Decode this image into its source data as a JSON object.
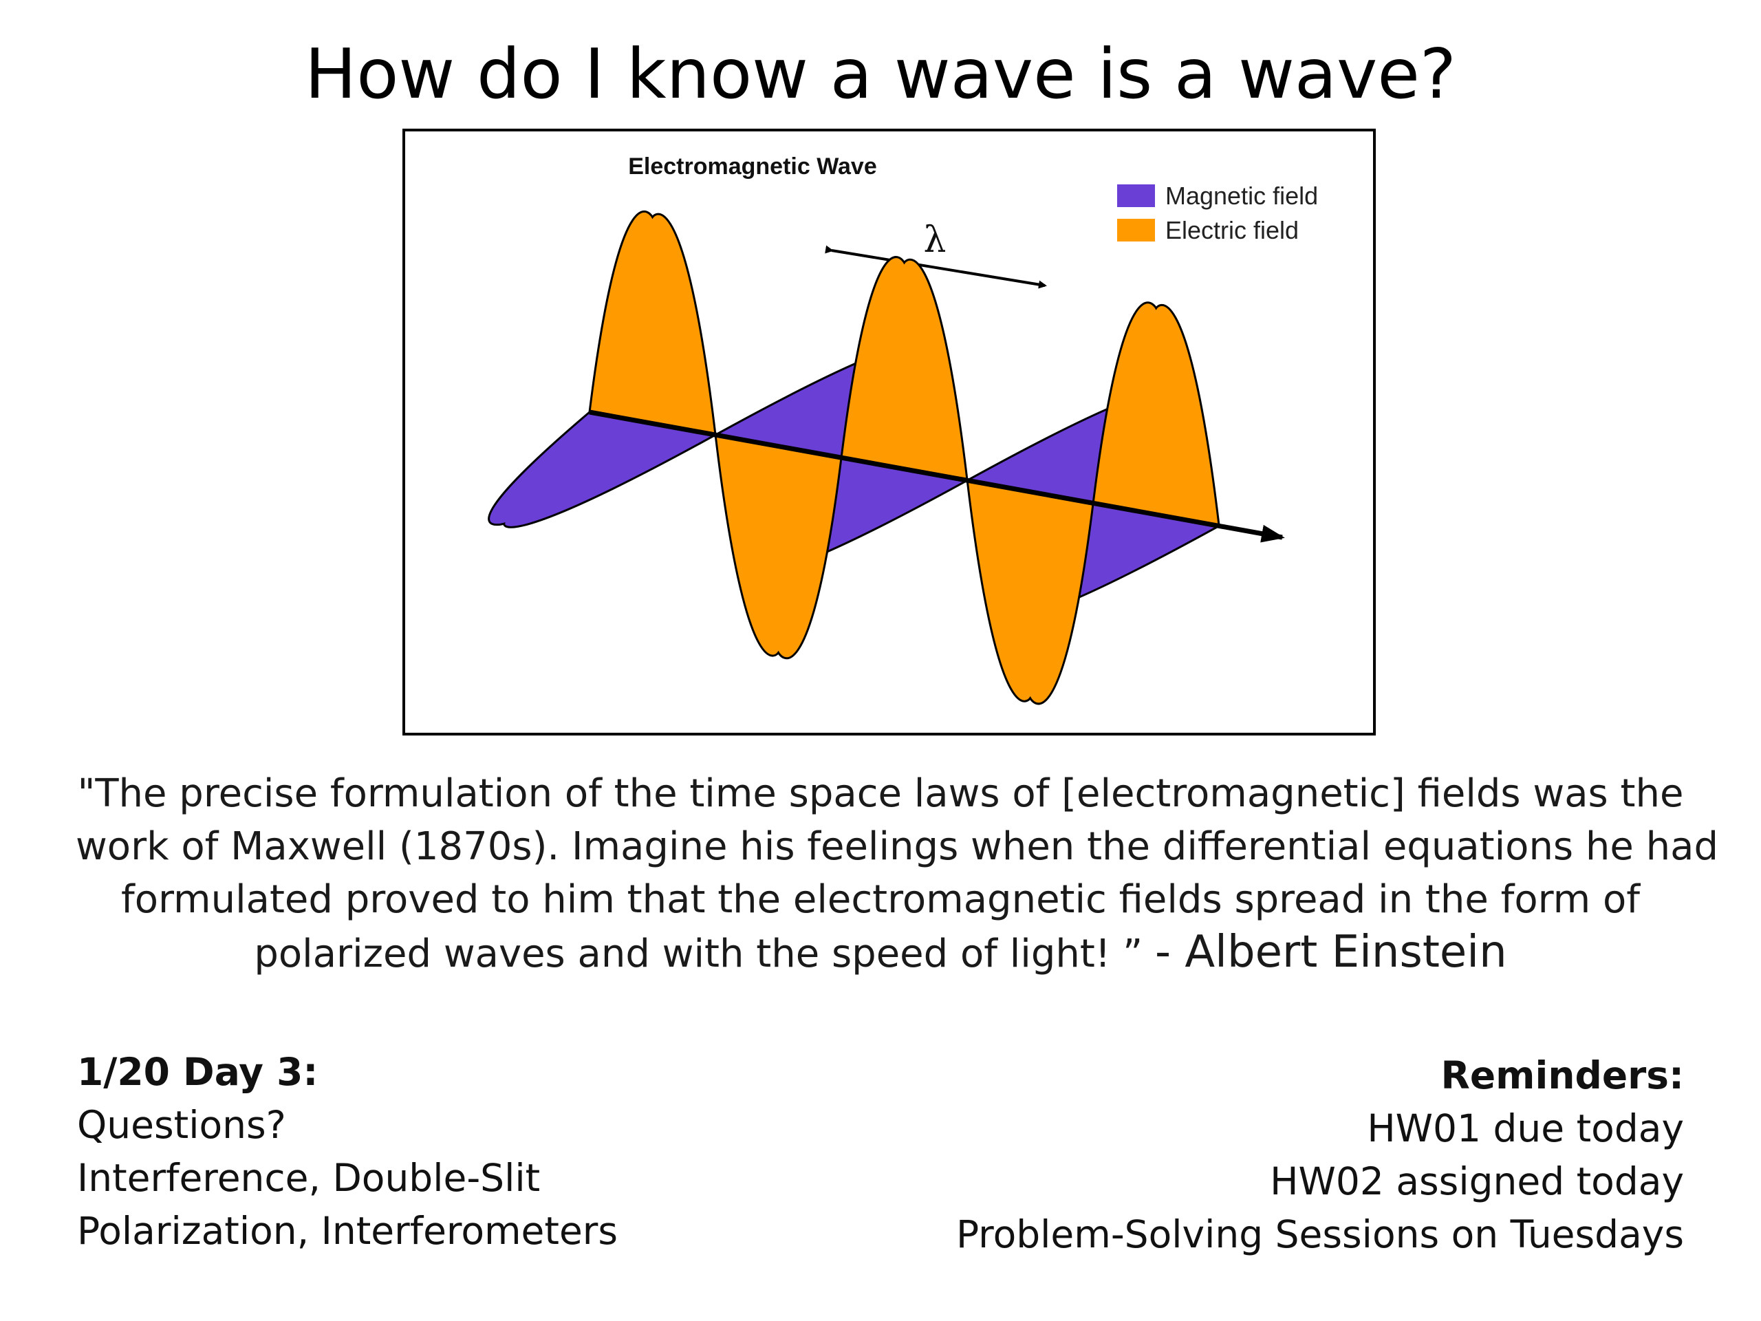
{
  "slide": {
    "title": "How do I know a wave is a wave?"
  },
  "figure": {
    "title": "Electromagnetic Wave",
    "wavelength_label": "λ",
    "legend": [
      {
        "label": "Magnetic field",
        "color": "#6a3fd6"
      },
      {
        "label": "Electric field",
        "color": "#ff9a00"
      }
    ]
  },
  "quote": {
    "line1": "\"The precise formulation of the time space laws of [electromagnetic] fields was the",
    "line2": "work of Maxwell (1870s). Imagine his feelings when the differential equations he had",
    "line3": "formulated proved to him that the electromagnetic fields spread in the form of",
    "line4": "polarized waves and with the speed of light! ”",
    "author": "- Albert Einstein"
  },
  "agenda": {
    "heading": "1/20 Day 3:",
    "items": [
      "Questions?",
      "Interference, Double-Slit",
      "Polarization, Interferometers"
    ]
  },
  "reminders": {
    "heading": "Reminders:",
    "items": [
      "HW01 due today",
      "HW02 assigned today",
      "Problem-Solving Sessions on Tuesdays"
    ]
  }
}
